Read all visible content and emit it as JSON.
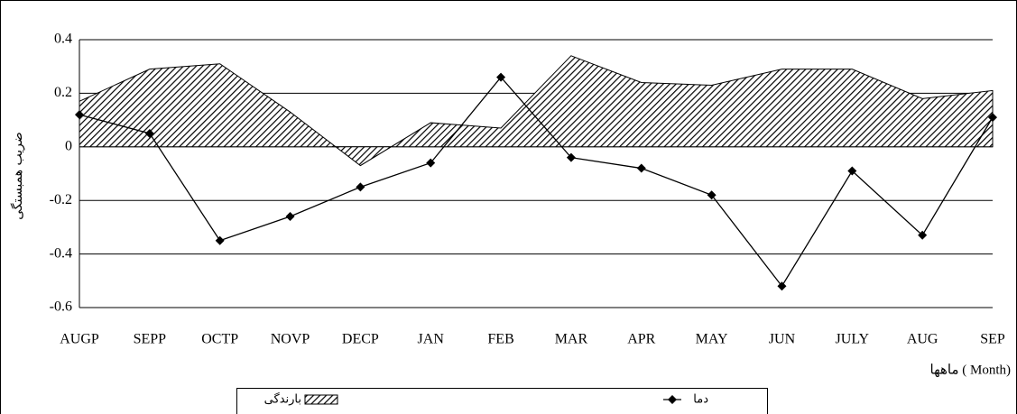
{
  "chart_data": {
    "type": "combo",
    "y_label": "ضریب همبستگی",
    "x_label": "ماهها ( Month)",
    "categories": [
      "AUGP",
      "SEPP",
      "OCTP",
      "NOVP",
      "DECP",
      "JAN",
      "FEB",
      "MAR",
      "APR",
      "MAY",
      "JUN",
      "JULY",
      "AUG",
      "SEP"
    ],
    "series": [
      {
        "name": "بارندگی",
        "type": "area",
        "color": "#000000",
        "values": [
          0.17,
          0.29,
          0.31,
          0.13,
          -0.07,
          0.09,
          0.07,
          0.34,
          0.24,
          0.23,
          0.29,
          0.29,
          0.18,
          0.21
        ]
      },
      {
        "name": "دما",
        "type": "line",
        "color": "#000000",
        "values": [
          0.12,
          0.05,
          -0.35,
          -0.26,
          -0.15,
          -0.06,
          0.26,
          -0.04,
          -0.08,
          -0.18,
          -0.52,
          -0.09,
          -0.33,
          0.11
        ]
      }
    ],
    "ylim": [
      -0.6,
      0.4
    ],
    "yticks": [
      -0.6,
      -0.4,
      -0.2,
      0,
      0.2,
      0.4
    ],
    "grid": true
  }
}
